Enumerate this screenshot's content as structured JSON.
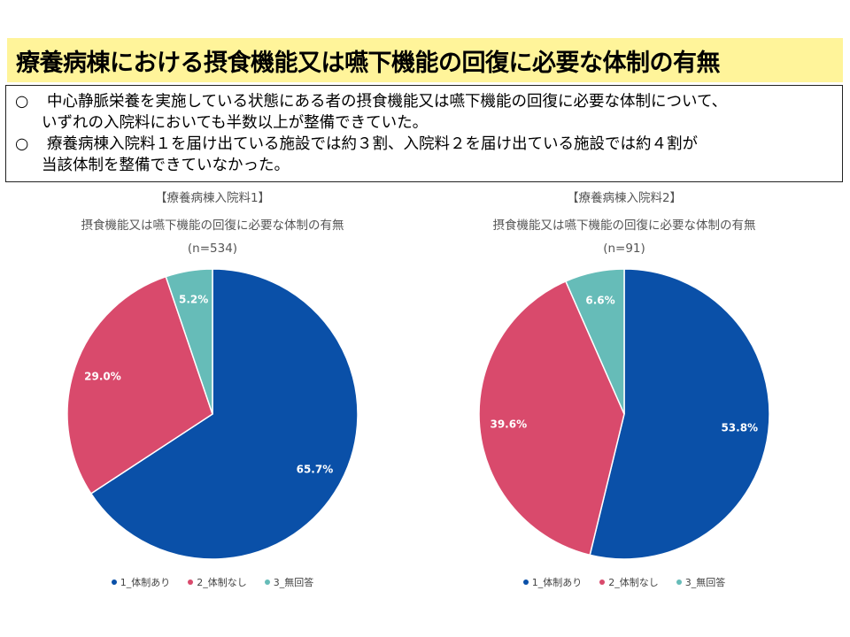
{
  "page_title": "療養病棟における摂食機能又は嚥下機能の回復に必要な体制の有無",
  "summary": [
    {
      "mark": "○",
      "line1": "中心静脈栄養を実施している状態にある者の摂食機能又は嚥下機能の回復に必要な体制について、",
      "line2": "いずれの入院料においても半数以上が整備できていた。"
    },
    {
      "mark": "○",
      "line1": "療養病棟入院料１を届け出ている施設では約３割、入院料２を届け出ている施設では約４割が",
      "line2": "当該体制を整備できていなかった。"
    }
  ],
  "colors": {
    "series1": "#0a50a8",
    "series2": "#d94a6c",
    "series3": "#66bcb8",
    "title_bg": "#fff49a"
  },
  "chart_data": [
    {
      "type": "pie",
      "title": "【療養病棟入院料1】",
      "subtitle": "摂食機能又は嚥下機能の回復に必要な体制の有無",
      "n_label": "(n=534)",
      "categories": [
        "1_体制あり",
        "2_体制なし",
        "3_無回答"
      ],
      "values": [
        65.7,
        29.0,
        5.2
      ],
      "data_labels": [
        "65.7%",
        "29.0%",
        "5.2%"
      ],
      "legend": "bottom"
    },
    {
      "type": "pie",
      "title": "【療養病棟入院料2】",
      "subtitle": "摂食機能又は嚥下機能の回復に必要な体制の有無",
      "n_label": "(n=91)",
      "categories": [
        "1_体制あり",
        "2_体制なし",
        "3_無回答"
      ],
      "values": [
        53.8,
        39.6,
        6.6
      ],
      "data_labels": [
        "53.8%",
        "39.6%",
        "6.6%"
      ],
      "legend": "bottom"
    }
  ]
}
